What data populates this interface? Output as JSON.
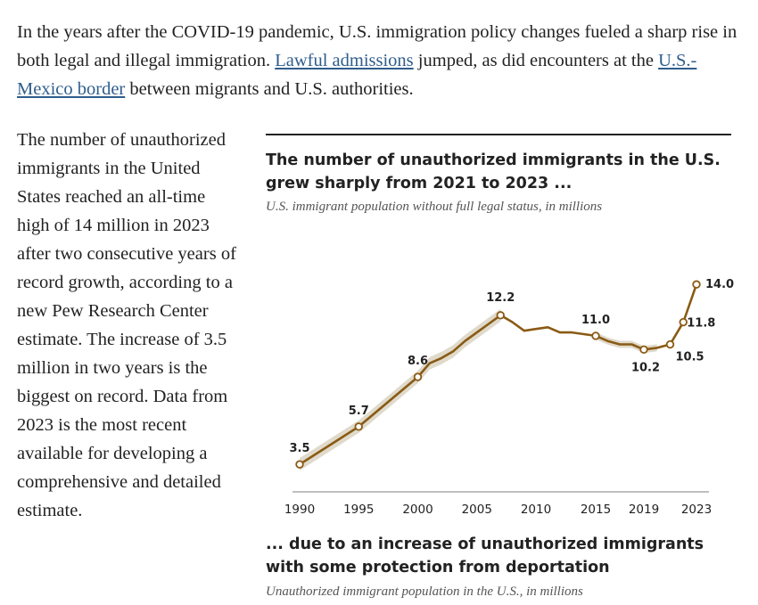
{
  "intro": {
    "part1": "In the years after the COVID-19 pandemic, U.S. immigration policy changes fueled a sharp rise in both legal and illegal immigration. ",
    "link1": "Lawful admissions",
    "part2": " jumped, as did encounters at the ",
    "link2": "U.S.-Mexico border",
    "part3": " between migrants and U.S. authorities."
  },
  "sidebar_text": "The number of unauthorized immigrants in the United States reached an all-time high of 14 million in 2023 after two consecutive years of record growth, according to a new Pew Research Center estimate. The increase of 3.5 million in two years is the biggest on record. Data from 2023 is the most recent available for developing a comprehensive and detailed estimate.",
  "chart": {
    "title": "The number of unauthorized immigrants in the U.S. grew sharply from 2021 to 2023 ...",
    "subtitle": "U.S. immigrant population without full legal status, in millions",
    "next_title": "... due to an increase of unauthorized immigrants with some protection from deportation",
    "next_subtitle": "Unauthorized immigrant population in the U.S., in millions",
    "colors": {
      "line": "#8a5a14",
      "band": "#dcd6c5",
      "axis": "#bbbbbb"
    }
  },
  "chart_data": {
    "type": "line",
    "title": "The number of unauthorized immigrants in the U.S. grew sharply from 2021 to 2023 ...",
    "ylabel": "millions",
    "xlim": [
      1990,
      2023
    ],
    "ylim": [
      2,
      15
    ],
    "x_ticks": [
      "1990",
      "1995",
      "2000",
      "2005",
      "2010",
      "2015",
      "2019",
      "2023"
    ],
    "series": [
      {
        "name": "Unauthorized immigrant population",
        "x": [
          1990,
          1995,
          2000,
          2001,
          2002,
          2003,
          2004,
          2005,
          2006,
          2007,
          2008,
          2009,
          2010,
          2011,
          2012,
          2013,
          2014,
          2015,
          2016,
          2017,
          2018,
          2019,
          2020,
          2021,
          2022,
          2023
        ],
        "values": [
          3.5,
          5.7,
          8.6,
          9.4,
          9.7,
          10.1,
          10.7,
          11.2,
          11.7,
          12.2,
          11.8,
          11.3,
          11.4,
          11.5,
          11.2,
          11.2,
          11.1,
          11.0,
          10.7,
          10.5,
          10.5,
          10.2,
          10.3,
          10.5,
          11.8,
          14.0
        ],
        "labeled_points": [
          {
            "x": 1990,
            "label": "3.5"
          },
          {
            "x": 1995,
            "label": "5.7"
          },
          {
            "x": 2000,
            "label": "8.6"
          },
          {
            "x": 2007,
            "label": "12.2"
          },
          {
            "x": 2015,
            "label": "11.0"
          },
          {
            "x": 2019,
            "label": "10.2"
          },
          {
            "x": 2021,
            "label": "10.5"
          },
          {
            "x": 2022,
            "label": "11.8"
          },
          {
            "x": 2023,
            "label": "14.0"
          }
        ]
      }
    ]
  }
}
